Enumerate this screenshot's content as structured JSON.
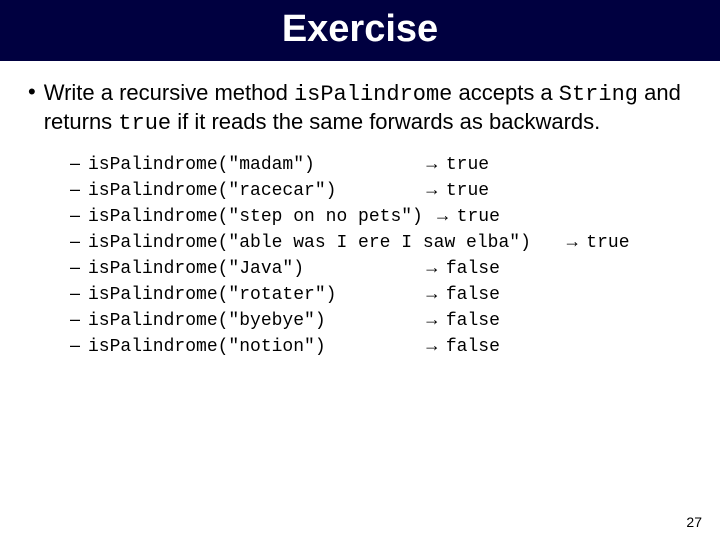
{
  "title": "Exercise",
  "bullet_char": "•",
  "main_text_1": "Write a recursive method ",
  "main_code_1": "isPalindrome",
  "main_text_2": " accepts a ",
  "main_code_2": "String",
  "main_text_3": " and returns ",
  "main_code_3": "true",
  "main_text_4": " if it reads the same forwards as backwards.",
  "examples": [
    {
      "call": "isPalindrome(\"madam\")          ",
      "result": "true"
    },
    {
      "call": "isPalindrome(\"racecar\")        ",
      "result": "true"
    },
    {
      "call": "isPalindrome(\"step on no pets\") ",
      "result": "true"
    },
    {
      "call": "isPalindrome(\"able was I ere I saw elba\")   ",
      "result": "true"
    },
    {
      "call": "isPalindrome(\"Java\")           ",
      "result": "false"
    },
    {
      "call": "isPalindrome(\"rotater\")        ",
      "result": "false"
    },
    {
      "call": "isPalindrome(\"byebye\")         ",
      "result": "false"
    },
    {
      "call": "isPalindrome(\"notion\")         ",
      "result": "false"
    }
  ],
  "dash": "–",
  "arrow": "→",
  "page_number": "27",
  "colors": {
    "title_bg": "#000040",
    "title_fg": "#ffffff",
    "text": "#000000",
    "background": "#ffffff"
  },
  "fonts": {
    "title_size_pt": 38,
    "body_size_pt": 22,
    "code_size_pt": 18,
    "body_family": "Arial",
    "code_family": "Courier New"
  }
}
